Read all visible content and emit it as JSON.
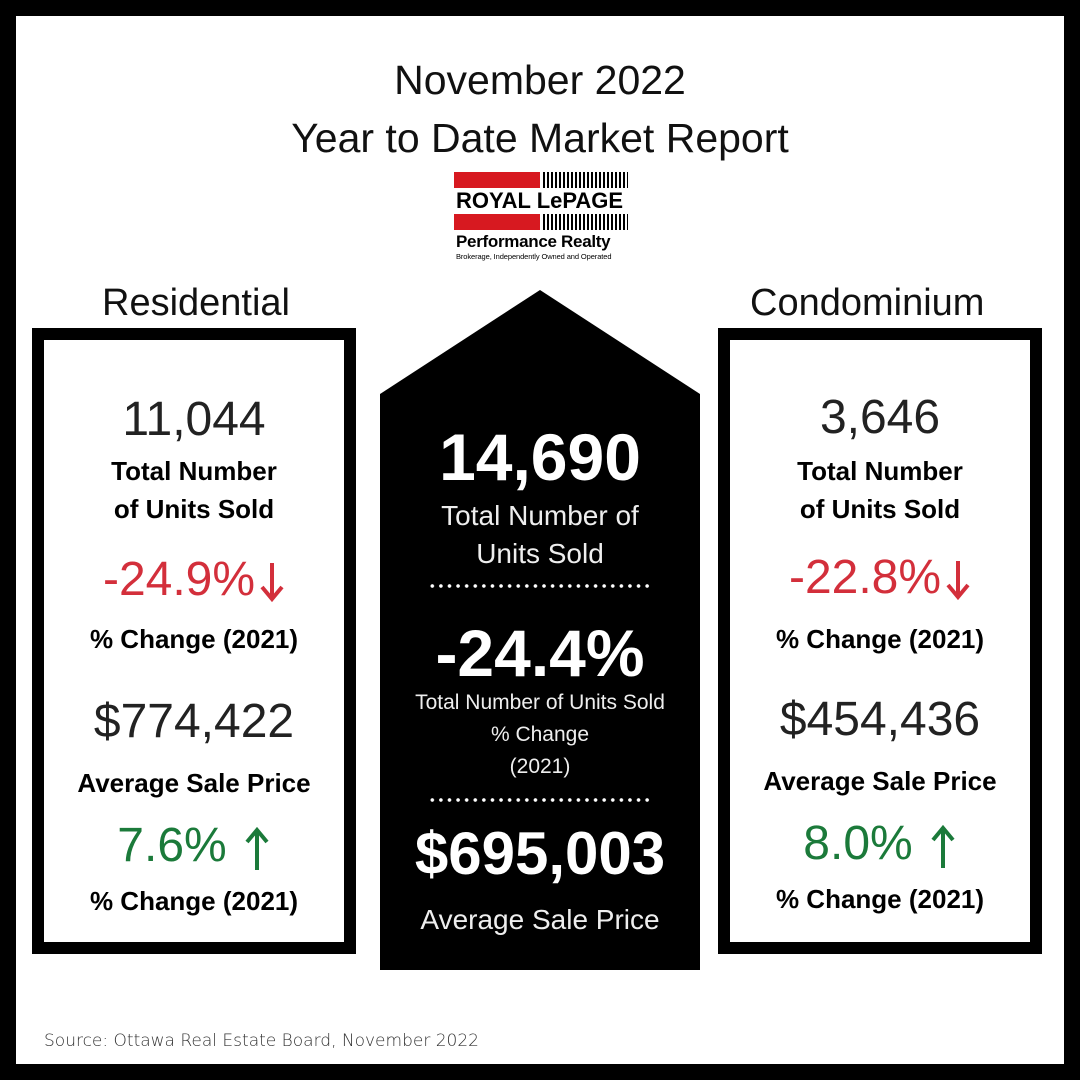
{
  "header": {
    "title_line1": "November 2022",
    "title_line2": "Year to Date Market Report"
  },
  "logo": {
    "brand": "ROYAL LePAGE",
    "sub": "Performance Realty",
    "tagline": "Brokerage, Independently Owned and Operated",
    "accent_color": "#d71920"
  },
  "residential": {
    "section_label": "Residential",
    "units_sold": "11,044",
    "units_label_line1": "Total Number",
    "units_label_line2": "of Units Sold",
    "units_change": "-24.9%",
    "units_change_label": "% Change (2021)",
    "avg_price": "$774,422",
    "avg_price_label": "Average Sale Price",
    "price_change": "7.6%",
    "price_change_label": "% Change (2021)"
  },
  "condominium": {
    "section_label": "Condominium",
    "units_sold": "3,646",
    "units_label_line1": "Total Number",
    "units_label_line2": "of Units Sold",
    "units_change": "-22.8%",
    "units_change_label": "% Change (2021)",
    "avg_price": "$454,436",
    "avg_price_label": "Average Sale Price",
    "price_change": "8.0%",
    "price_change_label": "% Change (2021)"
  },
  "total": {
    "units_sold": "14,690",
    "units_label_line1": "Total Number of",
    "units_label_line2": "Units Sold",
    "units_change": "-24.4%",
    "change_label_line1": "Total Number of Units Sold",
    "change_label_line2": "% Change",
    "change_label_line3": "(2021)",
    "avg_price": "$695,003",
    "avg_price_label": "Average Sale Price"
  },
  "colors": {
    "negative": "#d32f3b",
    "positive": "#1b7a3a"
  },
  "icons": {
    "down": "arrow-down-icon",
    "up": "arrow-up-icon"
  },
  "footer": {
    "source": "Source: Ottawa Real Estate Board, November 2022"
  }
}
